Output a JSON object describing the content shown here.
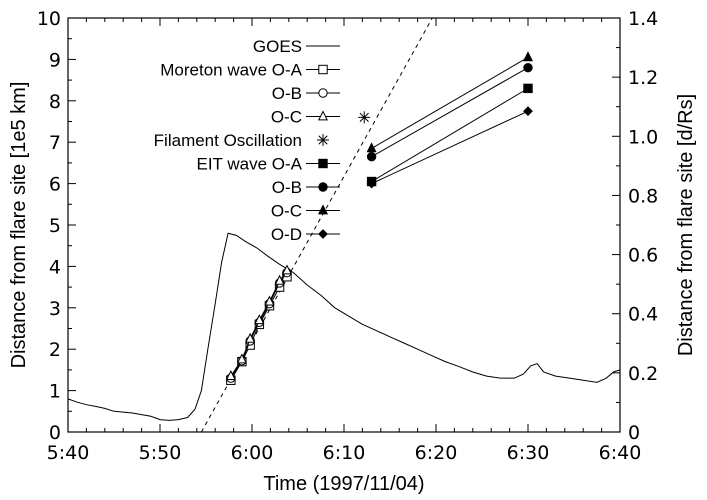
{
  "chart_data": {
    "type": "line",
    "xlabel": "Time (1997/11/04)",
    "ylabel_left": "Distance from flare site [1e5 km]",
    "ylabel_right": "Distance from flare site [d/Rs]",
    "x_unit": "minutes since 5:40 (UT)",
    "xlim": [
      0,
      60
    ],
    "ylim_left": [
      0,
      10
    ],
    "ylim_right": [
      0,
      1.4
    ],
    "x_ticks": [
      {
        "v": 0,
        "label": "5:40"
      },
      {
        "v": 10,
        "label": "5:50"
      },
      {
        "v": 20,
        "label": "6:00"
      },
      {
        "v": 30,
        "label": "6:10"
      },
      {
        "v": 40,
        "label": "6:20"
      },
      {
        "v": 50,
        "label": "6:30"
      },
      {
        "v": 60,
        "label": "6:40"
      }
    ],
    "y_left_ticks": [
      0,
      1,
      2,
      3,
      4,
      5,
      6,
      7,
      8,
      9,
      10
    ],
    "y_right_ticks": [
      0,
      0.2,
      0.4,
      0.6,
      0.8,
      1.0,
      1.2,
      1.4
    ],
    "y_right_tick_labels": [
      "0",
      "0.2",
      "0.4",
      "0.6",
      "0.8",
      "1.0",
      "1.2",
      "1.4"
    ],
    "series": [
      {
        "name": "GOES",
        "style": "line",
        "points": [
          [
            0,
            0.8
          ],
          [
            1,
            0.72
          ],
          [
            2,
            0.66
          ],
          [
            3,
            0.62
          ],
          [
            4,
            0.57
          ],
          [
            5,
            0.5
          ],
          [
            6,
            0.48
          ],
          [
            7,
            0.46
          ],
          [
            8,
            0.42
          ],
          [
            9,
            0.38
          ],
          [
            10,
            0.3
          ],
          [
            11,
            0.28
          ],
          [
            12,
            0.3
          ],
          [
            13,
            0.35
          ],
          [
            13.8,
            0.55
          ],
          [
            14.5,
            1.0
          ],
          [
            15.2,
            2.0
          ],
          [
            16,
            3.1
          ],
          [
            16.7,
            4.1
          ],
          [
            17.4,
            4.8
          ],
          [
            18.3,
            4.75
          ],
          [
            19.3,
            4.6
          ],
          [
            20.5,
            4.45
          ],
          [
            21.7,
            4.25
          ],
          [
            23,
            4.05
          ],
          [
            24.5,
            3.85
          ],
          [
            26,
            3.55
          ],
          [
            27.5,
            3.3
          ],
          [
            29,
            3.0
          ],
          [
            30.5,
            2.8
          ],
          [
            32,
            2.6
          ],
          [
            33.5,
            2.45
          ],
          [
            35,
            2.3
          ],
          [
            36.5,
            2.15
          ],
          [
            38,
            2.0
          ],
          [
            39.5,
            1.85
          ],
          [
            41,
            1.7
          ],
          [
            42.5,
            1.58
          ],
          [
            44,
            1.45
          ],
          [
            45.5,
            1.35
          ],
          [
            47,
            1.3
          ],
          [
            48.5,
            1.3
          ],
          [
            49.5,
            1.4
          ],
          [
            50.3,
            1.6
          ],
          [
            51,
            1.65
          ],
          [
            51.7,
            1.45
          ],
          [
            53,
            1.35
          ],
          [
            54.5,
            1.3
          ],
          [
            56,
            1.25
          ],
          [
            57.5,
            1.2
          ],
          [
            58.5,
            1.3
          ],
          [
            59.3,
            1.45
          ],
          [
            60,
            1.5
          ]
        ]
      },
      {
        "name": "Moreton wave O-A",
        "marker": "square-open",
        "points": [
          [
            17.7,
            1.25
          ],
          [
            18.9,
            1.7
          ],
          [
            19.8,
            2.1
          ],
          [
            20.8,
            2.6
          ],
          [
            21.9,
            3.05
          ],
          [
            23,
            3.5
          ],
          [
            23.8,
            3.75
          ]
        ]
      },
      {
        "name": "O-B",
        "marker": "circle-open",
        "points": [
          [
            17.7,
            1.3
          ],
          [
            18.9,
            1.72
          ],
          [
            19.8,
            2.2
          ],
          [
            20.8,
            2.65
          ],
          [
            21.9,
            3.1
          ],
          [
            23,
            3.6
          ],
          [
            23.8,
            3.85
          ]
        ]
      },
      {
        "name": "O-C",
        "marker": "triangle-open",
        "points": [
          [
            17.7,
            1.35
          ],
          [
            18.9,
            1.75
          ],
          [
            19.8,
            2.25
          ],
          [
            20.8,
            2.7
          ],
          [
            21.9,
            3.15
          ],
          [
            23,
            3.65
          ],
          [
            23.8,
            3.9
          ]
        ]
      },
      {
        "name": "Filament Oscillation",
        "marker": "star",
        "points": [
          [
            32.2,
            7.6
          ]
        ]
      },
      {
        "name": "EIT wave O-A",
        "marker": "square-filled",
        "points": [
          [
            33,
            6.05
          ],
          [
            50,
            8.3
          ]
        ]
      },
      {
        "name": "O-B",
        "marker": "circle-filled",
        "points": [
          [
            33,
            6.65
          ],
          [
            50,
            8.8
          ]
        ]
      },
      {
        "name": "O-C",
        "marker": "triangle-filled",
        "points": [
          [
            33,
            6.85
          ],
          [
            50,
            9.05
          ]
        ]
      },
      {
        "name": "O-D",
        "marker": "diamond-filled",
        "points": [
          [
            33,
            6.0
          ],
          [
            50,
            7.75
          ]
        ]
      }
    ],
    "fit_line": {
      "style": "dashed",
      "points": [
        [
          14.5,
          0
        ],
        [
          39.6,
          10
        ]
      ]
    },
    "legend_position": "top-left",
    "grid": false
  }
}
